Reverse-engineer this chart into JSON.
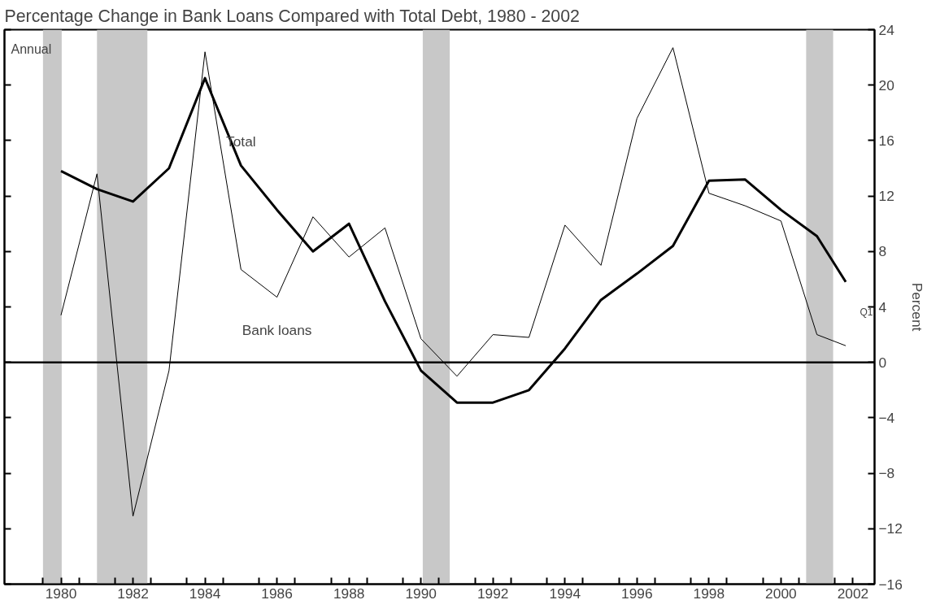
{
  "chart_data": {
    "type": "line",
    "title": "Percentage Change in Bank Loans Compared with Total Debt, 1980 - 2002",
    "ylabel": "Percent",
    "x": [
      1980,
      1981,
      1982,
      1983,
      1984,
      1985,
      1986,
      1987,
      1988,
      1989,
      1990,
      1991,
      1992,
      1993,
      1994,
      1995,
      1996,
      1997,
      1998,
      1999,
      2000,
      2001,
      2001.8
    ],
    "series": [
      {
        "name": "Total",
        "color": "#000000",
        "values": [
          13.8,
          12.5,
          11.6,
          14.0,
          20.5,
          14.2,
          11.0,
          8.0,
          10.0,
          4.4,
          -0.6,
          -2.9,
          -2.9,
          -2.0,
          1.0,
          4.5,
          6.4,
          8.4,
          13.1,
          13.2,
          11.0,
          9.1,
          5.8
        ]
      },
      {
        "name": "Bank loans",
        "color": "#000000",
        "values": [
          3.4,
          13.6,
          -11.1,
          -0.6,
          22.4,
          6.7,
          4.7,
          10.5,
          7.6,
          9.7,
          1.7,
          -1.0,
          2.0,
          1.8,
          9.9,
          7.0,
          17.6,
          22.7,
          12.2,
          11.3,
          10.2,
          2.0,
          1.2
        ]
      }
    ],
    "xlim": [
      1978.43,
      2002.6
    ],
    "xticks": [
      {
        "value": 1979.5,
        "label": null
      },
      {
        "value": 1980,
        "label": "1980"
      },
      {
        "value": 1980.5,
        "label": null
      },
      {
        "value": 1981.5,
        "label": null
      },
      {
        "value": 1982,
        "label": "1982"
      },
      {
        "value": 1982.5,
        "label": null
      },
      {
        "value": 1983.5,
        "label": null
      },
      {
        "value": 1984,
        "label": "1984"
      },
      {
        "value": 1984.5,
        "label": null
      },
      {
        "value": 1985.5,
        "label": null
      },
      {
        "value": 1986,
        "label": "1986"
      },
      {
        "value": 1986.5,
        "label": null
      },
      {
        "value": 1987.5,
        "label": null
      },
      {
        "value": 1988,
        "label": "1988"
      },
      {
        "value": 1988.5,
        "label": null
      },
      {
        "value": 1989.5,
        "label": null
      },
      {
        "value": 1990,
        "label": "1990"
      },
      {
        "value": 1990.5,
        "label": null
      },
      {
        "value": 1991.5,
        "label": null
      },
      {
        "value": 1992,
        "label": "1992"
      },
      {
        "value": 1992.5,
        "label": null
      },
      {
        "value": 1993.5,
        "label": null
      },
      {
        "value": 1994,
        "label": "1994"
      },
      {
        "value": 1994.5,
        "label": null
      },
      {
        "value": 1995.5,
        "label": null
      },
      {
        "value": 1996,
        "label": "1996"
      },
      {
        "value": 1996.5,
        "label": null
      },
      {
        "value": 1997.5,
        "label": null
      },
      {
        "value": 1998,
        "label": "1998"
      },
      {
        "value": 1998.5,
        "label": null
      },
      {
        "value": 1999.5,
        "label": null
      },
      {
        "value": 2000,
        "label": "2000"
      },
      {
        "value": 2000.5,
        "label": null
      },
      {
        "value": 2001.5,
        "label": null
      },
      {
        "value": 2002,
        "label": "2002"
      }
    ],
    "ylim": [
      -16,
      24
    ],
    "yticks": [
      -16,
      -12,
      -8,
      -4,
      0,
      4,
      8,
      12,
      16,
      20,
      24
    ],
    "ref_lines": [
      {
        "axis": "y",
        "value": 0,
        "color": "#000000"
      }
    ],
    "bands": [
      {
        "axis": "x",
        "from": 1979.5,
        "to": 1980.02,
        "color": "#c8c8c8"
      },
      {
        "axis": "x",
        "from": 1981.0,
        "to": 1982.4,
        "color": "#c8c8c8"
      },
      {
        "axis": "x",
        "from": 1990.05,
        "to": 1990.8,
        "color": "#c8c8c8"
      },
      {
        "axis": "x",
        "from": 2000.7,
        "to": 2001.45,
        "color": "#c8c8c8"
      }
    ],
    "annotations": [
      "Annual",
      "Q1"
    ],
    "grid": false,
    "legend": false,
    "line_style": "solid"
  }
}
